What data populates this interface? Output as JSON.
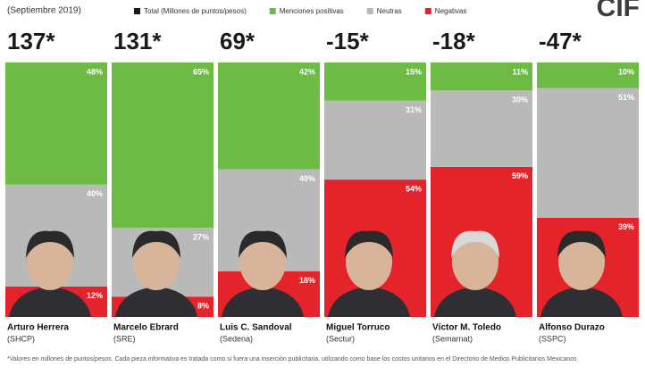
{
  "chart_data": {
    "type": "stacked_bar",
    "subtitle": "(Septiembre 2019)",
    "logo": "CIF",
    "categories": [
      "Arturo Herrera",
      "Marcelo Ebrard",
      "Luis C. Sandoval",
      "Miguel Torruco",
      "Víctor M. Toledo",
      "Alfonso Durazo"
    ],
    "organizations": [
      "(SHCP)",
      "(SRE)",
      "(Sedena)",
      "(Sectur)",
      "(Semarnat)",
      "(SSPC)"
    ],
    "totals": {
      "name": "Total (Millones de puntos/pesos)",
      "color": "#1a1a1a",
      "values": [
        137,
        131,
        69,
        -15,
        -18,
        -47
      ],
      "value_labels": [
        "137*",
        "131*",
        "69*",
        "-15*",
        "-18*",
        "-47*"
      ]
    },
    "ylim": [
      0,
      100
    ],
    "series": [
      {
        "name": "Menciones positivas",
        "color": "#6dbb45",
        "values": [
          48,
          65,
          42,
          15,
          11,
          10
        ],
        "value_labels": [
          "48%",
          "65%",
          "42%",
          "15%",
          "11%",
          "10%"
        ]
      },
      {
        "name": "Neutras",
        "color": "#b9b9b9",
        "values": [
          40,
          27,
          40,
          31,
          30,
          51
        ],
        "value_labels": [
          "40%",
          "27%",
          "40%",
          "31%",
          "30%",
          "51%"
        ]
      },
      {
        "name": "Negativas",
        "color": "#e4232b",
        "values": [
          12,
          8,
          18,
          54,
          59,
          39
        ],
        "value_labels": [
          "12%",
          "8%",
          "18%",
          "54%",
          "59%",
          "39%"
        ]
      }
    ],
    "footnote": "*Valores en millones de puntos/pesos. Cada pieza informativa es tratada como si fuera una inserción publicitaria, utilizando como base los costos unitarios en el Directorio de Medios Publicitarios Mexicanos"
  }
}
